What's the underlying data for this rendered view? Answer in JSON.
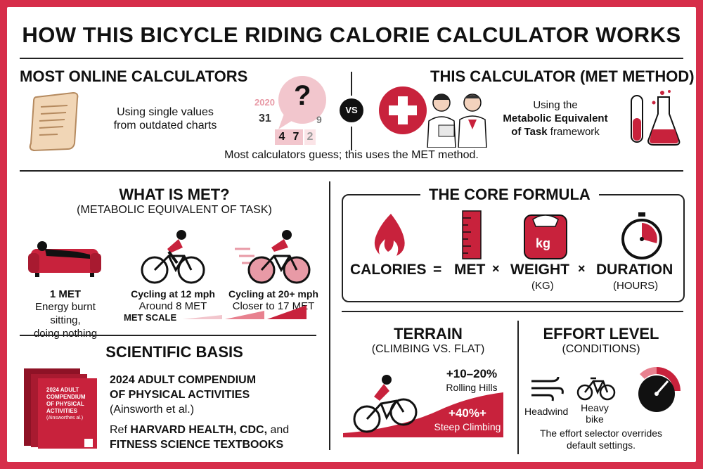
{
  "title": "HOW THIS BICYCLE RIDING CALORIE CALCULATOR WORKS",
  "online": {
    "heading": "MOST ONLINE CALCULATORS",
    "text_line1": "Using single values",
    "text_line2": "from outdated charts",
    "chart_numbers": {
      "year": "2020",
      "n1": "31",
      "n2": "9",
      "c1": "4",
      "c2": "7",
      "c3": "2"
    },
    "question": "?"
  },
  "vs": "VS",
  "met_calc": {
    "heading": "THIS CALCULATOR (MET METHOD)",
    "line1": "Using the",
    "line2_bold": "Metabolic Equivalent",
    "line3_bold": "of Task",
    "line3_rest": " framework"
  },
  "caption": "Most calculators guess; this uses the MET method.",
  "what_is_met": {
    "heading": "WHAT IS MET?",
    "subheading": "(METABOLIC EQUIVALENT OF TASK)",
    "items": [
      {
        "title": "1 MET",
        "line1": "Energy burnt sitting,",
        "line2": "doing nothing"
      },
      {
        "title": "Cycling at 12 mph",
        "line1": "Around 8 MET",
        "line2": ""
      },
      {
        "title": "Cycling at 20+ mph",
        "line1": "Closer to 17 MET",
        "line2": ""
      }
    ],
    "scale_label": "MET SCALE"
  },
  "formula": {
    "heading": "THE CORE FORMULA",
    "calories": "CALORIES",
    "equals": "=",
    "met": "MET",
    "times1": "×",
    "weight": "WEIGHT",
    "weight_unit": "(KG)",
    "times2": "×",
    "duration": "DURATION",
    "duration_unit": "(HOURS)",
    "scale_label": "kg"
  },
  "scientific": {
    "heading": "SCIENTIFIC BASIS",
    "line1": "2024 ADULT COMPENDIUM",
    "line2": "OF PHYSICAL ACTIVITIES",
    "line3": "(Ainsworth et al.)",
    "ref_prefix": "Ref ",
    "ref_bold": "HARVARD HEALTH, CDC,",
    "ref_and": " and",
    "ref_line2": "FITNESS SCIENCE TEXTBOOKS",
    "book": {
      "l1": "2024 ADULT",
      "l2": "COMPENDIUM",
      "l3": "OF PHYSICAL",
      "l4": "ACTIVITIES",
      "l5": "(Ainsworthes al.)"
    }
  },
  "terrain": {
    "heading": "TERRAIN",
    "subheading": "(CLIMBING VS. FLAT)",
    "rolling_pct": "+10–20%",
    "rolling_label": "Rolling Hills",
    "steep_pct": "+40%+",
    "steep_label": "Steep Climbing"
  },
  "effort": {
    "heading": "EFFORT LEVEL",
    "subheading": "(CONDITIONS)",
    "headwind": "Headwind",
    "heavy_l1": "Heavy",
    "heavy_l2": "bike",
    "note_l1": "The effort selector overrides",
    "note_l2": "default settings."
  },
  "colors": {
    "accent": "#c8223c",
    "light_accent": "#f2c6cd",
    "border": "#d62e4a"
  }
}
